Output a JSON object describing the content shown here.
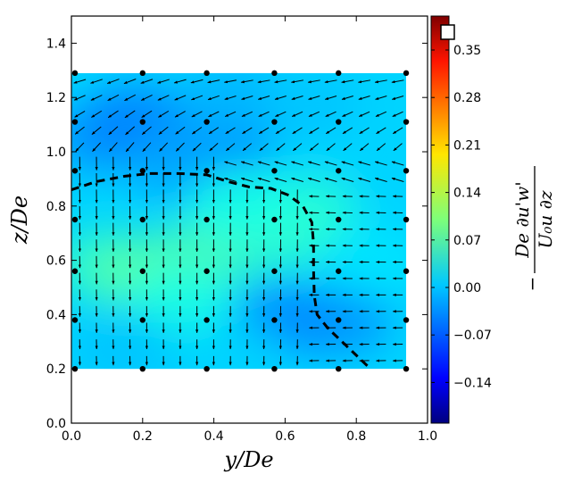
{
  "chart_data": {
    "type": "heatmap",
    "title": "",
    "xlabel": "y/De",
    "ylabel": "z/De",
    "xlim": [
      0.0,
      1.0
    ],
    "ylim": [
      0.0,
      1.5
    ],
    "x_ticks": [
      "0.0",
      "0.2",
      "0.4",
      "0.6",
      "0.8",
      "1.0"
    ],
    "y_ticks": [
      "0.0",
      "0.2",
      "0.4",
      "0.6",
      "0.8",
      "1.0",
      "1.2",
      "1.4"
    ],
    "colorbar": {
      "label_top": "De ∂u'w'",
      "label_bottom": "U₀u ∂z",
      "sign": "−",
      "range": [
        -0.2,
        0.4
      ],
      "ticks": [
        "0.35",
        "0.28",
        "0.21",
        "0.14",
        "0.07",
        "0.00",
        "−0.07",
        "−0.14"
      ],
      "tick_values": [
        0.35,
        0.28,
        0.21,
        0.14,
        0.07,
        0.0,
        -0.07,
        -0.14
      ]
    },
    "field_extent": {
      "y": [
        0.0,
        0.94
      ],
      "z": [
        0.2,
        1.29
      ]
    },
    "field_regions": [
      {
        "y": 0.08,
        "z": 1.05,
        "value": -0.04
      },
      {
        "y": 0.18,
        "z": 1.12,
        "value": -0.05
      },
      {
        "y": 0.42,
        "z": 1.02,
        "value": -0.04
      },
      {
        "y": 0.45,
        "z": 1.2,
        "value": -0.02
      },
      {
        "y": 0.68,
        "z": 1.16,
        "value": -0.01
      },
      {
        "y": 0.3,
        "z": 0.95,
        "value": -0.03
      },
      {
        "y": 0.85,
        "z": 1.0,
        "value": 0.0
      },
      {
        "y": 0.1,
        "z": 0.58,
        "value": 0.06
      },
      {
        "y": 0.22,
        "z": 0.55,
        "value": 0.08
      },
      {
        "y": 0.37,
        "z": 0.62,
        "value": 0.07
      },
      {
        "y": 0.58,
        "z": 0.7,
        "value": 0.06
      },
      {
        "y": 0.66,
        "z": 0.78,
        "value": 0.05
      },
      {
        "y": 0.48,
        "z": 0.8,
        "value": 0.04
      },
      {
        "y": 0.3,
        "z": 0.45,
        "value": 0.04
      },
      {
        "y": 0.6,
        "z": 0.38,
        "value": -0.05
      },
      {
        "y": 0.75,
        "z": 0.38,
        "value": -0.04
      },
      {
        "y": 0.15,
        "z": 0.28,
        "value": -0.01
      },
      {
        "y": 0.45,
        "z": 0.25,
        "value": 0.0
      },
      {
        "y": 0.85,
        "z": 0.6,
        "value": 0.01
      }
    ],
    "marker_points": {
      "y": [
        0.01,
        0.2,
        0.38,
        0.57,
        0.75,
        0.94
      ],
      "z": [
        1.29,
        1.11,
        0.93,
        0.75,
        0.56,
        0.38,
        0.2
      ]
    },
    "dashed_contour": [
      [
        0.0,
        0.86
      ],
      [
        0.07,
        0.89
      ],
      [
        0.15,
        0.91
      ],
      [
        0.22,
        0.92
      ],
      [
        0.3,
        0.92
      ],
      [
        0.38,
        0.915
      ],
      [
        0.44,
        0.89
      ],
      [
        0.5,
        0.87
      ],
      [
        0.56,
        0.865
      ],
      [
        0.61,
        0.84
      ],
      [
        0.65,
        0.8
      ],
      [
        0.675,
        0.74
      ],
      [
        0.68,
        0.66
      ],
      [
        0.68,
        0.56
      ],
      [
        0.682,
        0.47
      ],
      [
        0.69,
        0.4
      ],
      [
        0.72,
        0.35
      ],
      [
        0.76,
        0.3
      ],
      [
        0.8,
        0.25
      ],
      [
        0.84,
        0.2
      ]
    ]
  }
}
